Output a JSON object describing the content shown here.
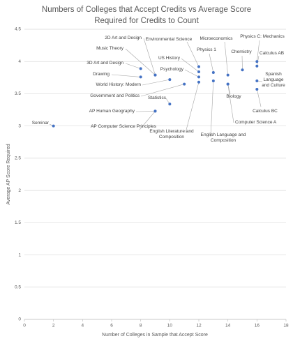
{
  "chart_data": {
    "type": "scatter",
    "title": "Numbers of Colleges that Accept Credits vs Average Score Required for Credits to Count",
    "x_label": "Number of Colleges in Sample that Accept Score",
    "y_label": "Average AP Score Required",
    "color": "#4472c4",
    "grid": true,
    "xlim": [
      0,
      18
    ],
    "xticks": [
      0,
      2,
      4,
      6,
      8,
      10,
      12,
      14,
      16,
      18
    ],
    "ylim": [
      0,
      4.5
    ],
    "yticks": [
      0,
      0.5,
      1,
      1.5,
      2,
      2.5,
      3,
      3.5,
      4,
      4.5
    ],
    "labels": [
      "Seminar",
      "AP Computer Science Principles",
      "AP Human Geography",
      "Statistics",
      "Government and Politics",
      "World History: Modern",
      "Drawing",
      "3D Art and Design",
      "Music Theory",
      "2D Art and Design",
      "Environmental Science",
      "US History",
      "Psychology",
      "English Literature and Composition",
      "Physics 1",
      "English Language and Composition",
      "Microeconomics",
      "Computer Science A",
      "Biology",
      "Chemistry",
      "Physics C: Mechanics",
      "Calculus AB",
      "Spanish Language and Culture",
      "Calculus BC"
    ],
    "x": [
      2,
      9,
      9,
      10,
      11,
      10,
      8,
      8,
      9,
      9,
      12,
      12,
      12,
      12,
      13,
      13,
      14,
      14,
      14,
      15,
      16,
      16,
      16,
      16
    ],
    "values": [
      3.0,
      3.23,
      3.23,
      3.34,
      3.65,
      3.72,
      3.76,
      3.89,
      3.79,
      3.79,
      3.92,
      3.84,
      3.76,
      3.68,
      3.83,
      3.7,
      3.79,
      3.65,
      3.65,
      3.87,
      4.0,
      3.93,
      3.7,
      3.57
    ]
  }
}
